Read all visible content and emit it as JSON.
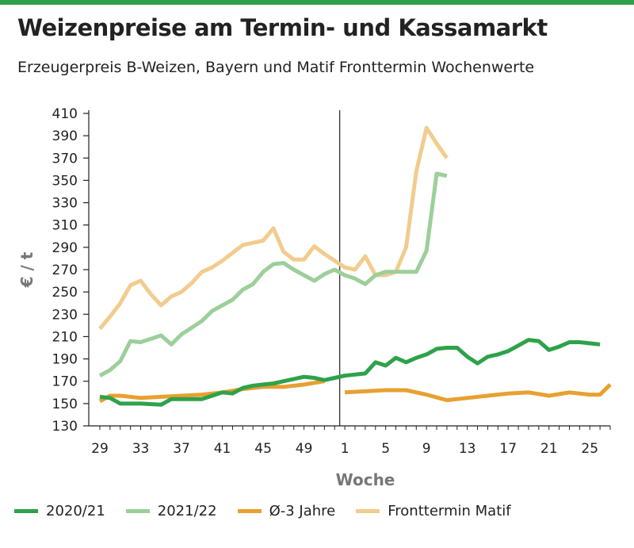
{
  "title": "Weizenpreise am Termin- und Kassamarkt",
  "subtitle": "Erzeugerpreis B-Weizen, Bayern und Matif Fronttermin Wochenwerte",
  "chart_data": {
    "type": "line",
    "title": "Weizenpreise am Termin- und Kassamarkt",
    "subtitle": "Erzeugerpreis B-Weizen, Bayern und Matif Fronttermin Wochenwerte",
    "xlabel": "Woche",
    "ylabel": "€ / t",
    "ylim": [
      130,
      410
    ],
    "yticks": [
      130,
      150,
      170,
      190,
      210,
      230,
      250,
      270,
      290,
      310,
      330,
      350,
      370,
      390,
      410
    ],
    "x_positions": [
      "29",
      "30",
      "31",
      "32",
      "33",
      "34",
      "35",
      "36",
      "37",
      "38",
      "39",
      "40",
      "41",
      "42",
      "43",
      "44",
      "45",
      "46",
      "47",
      "48",
      "49",
      "50",
      "51",
      "52",
      "1",
      "2",
      "3",
      "4",
      "5",
      "6",
      "7",
      "8",
      "9",
      "10",
      "11",
      "12",
      "13",
      "14",
      "15",
      "16",
      "17",
      "18",
      "19",
      "20",
      "21",
      "22",
      "23",
      "24",
      "25",
      "26",
      "27"
    ],
    "xtick_labels": [
      "29",
      "33",
      "37",
      "41",
      "45",
      "49",
      "1",
      "5",
      "9",
      "13",
      "17",
      "21",
      "25"
    ],
    "divider_at": "1",
    "grid": false,
    "legend_position": "bottom",
    "series": [
      {
        "name": "2020/21",
        "color": "#2ea24a",
        "points": [
          [
            "29",
            156
          ],
          [
            "30",
            155
          ],
          [
            "31",
            150
          ],
          [
            "33",
            150
          ],
          [
            "35",
            149
          ],
          [
            "36",
            154
          ],
          [
            "37",
            154
          ],
          [
            "39",
            154
          ],
          [
            "41",
            160
          ],
          [
            "42",
            159
          ],
          [
            "43",
            164
          ],
          [
            "44",
            166
          ],
          [
            "45",
            167
          ],
          [
            "46",
            168
          ],
          [
            "47",
            170
          ],
          [
            "48",
            172
          ],
          [
            "49",
            174
          ],
          [
            "50",
            173
          ],
          [
            "51",
            171
          ],
          [
            "52",
            173
          ],
          [
            "1",
            175
          ],
          [
            "2",
            176
          ],
          [
            "3",
            177
          ],
          [
            "4",
            187
          ],
          [
            "5",
            184
          ],
          [
            "6",
            191
          ],
          [
            "7",
            187
          ],
          [
            "8",
            191
          ],
          [
            "9",
            194
          ],
          [
            "10",
            199
          ],
          [
            "11",
            200
          ],
          [
            "12",
            200
          ],
          [
            "13",
            192
          ],
          [
            "14",
            186
          ],
          [
            "15",
            192
          ],
          [
            "16",
            194
          ],
          [
            "17",
            197
          ],
          [
            "18",
            202
          ],
          [
            "19",
            207
          ],
          [
            "20",
            206
          ],
          [
            "21",
            198
          ],
          [
            "22",
            201
          ],
          [
            "23",
            205
          ],
          [
            "24",
            205
          ],
          [
            "25",
            204
          ],
          [
            "26",
            203
          ]
        ]
      },
      {
        "name": "2021/22",
        "color": "#9ccf9a",
        "points": [
          [
            "29",
            175
          ],
          [
            "30",
            180
          ],
          [
            "31",
            188
          ],
          [
            "32",
            206
          ],
          [
            "33",
            205
          ],
          [
            "34",
            208
          ],
          [
            "35",
            211
          ],
          [
            "36",
            203
          ],
          [
            "37",
            212
          ],
          [
            "38",
            218
          ],
          [
            "39",
            224
          ],
          [
            "40",
            233
          ],
          [
            "41",
            238
          ],
          [
            "42",
            243
          ],
          [
            "43",
            252
          ],
          [
            "44",
            257
          ],
          [
            "45",
            268
          ],
          [
            "46",
            275
          ],
          [
            "47",
            276
          ],
          [
            "48",
            270
          ],
          [
            "49",
            265
          ],
          [
            "50",
            260
          ],
          [
            "51",
            266
          ],
          [
            "52",
            270
          ],
          [
            "1",
            265
          ],
          [
            "2",
            262
          ],
          [
            "3",
            257
          ],
          [
            "4",
            265
          ],
          [
            "5",
            268
          ],
          [
            "6",
            268
          ],
          [
            "7",
            268
          ],
          [
            "8",
            268
          ],
          [
            "9",
            287
          ],
          [
            "10",
            356
          ],
          [
            "11",
            354
          ]
        ]
      },
      {
        "name": "Ø-3 Jahre",
        "color": "#e8a030",
        "segments": [
          [
            [
              "29",
              152
            ],
            [
              "30",
              157
            ],
            [
              "31",
              157
            ],
            [
              "33",
              155
            ],
            [
              "35",
              156
            ],
            [
              "37",
              157
            ],
            [
              "39",
              158
            ],
            [
              "41",
              160
            ],
            [
              "43",
              163
            ],
            [
              "45",
              165
            ],
            [
              "47",
              165
            ],
            [
              "49",
              167
            ],
            [
              "51",
              170
            ]
          ],
          [
            [
              "1",
              160
            ],
            [
              "3",
              161
            ],
            [
              "5",
              162
            ],
            [
              "7",
              162
            ],
            [
              "9",
              158
            ],
            [
              "11",
              153
            ],
            [
              "13",
              155
            ],
            [
              "15",
              157
            ],
            [
              "17",
              159
            ],
            [
              "19",
              160
            ],
            [
              "21",
              157
            ],
            [
              "23",
              160
            ],
            [
              "25",
              158
            ],
            [
              "26",
              158
            ],
            [
              "27",
              167
            ]
          ]
        ]
      },
      {
        "name": "Fronttermin Matif",
        "color": "#f2cc8e",
        "points": [
          [
            "29",
            217
          ],
          [
            "30",
            228
          ],
          [
            "31",
            240
          ],
          [
            "32",
            256
          ],
          [
            "33",
            260
          ],
          [
            "34",
            248
          ],
          [
            "35",
            238
          ],
          [
            "36",
            246
          ],
          [
            "37",
            250
          ],
          [
            "38",
            258
          ],
          [
            "39",
            268
          ],
          [
            "40",
            272
          ],
          [
            "41",
            278
          ],
          [
            "42",
            285
          ],
          [
            "43",
            292
          ],
          [
            "44",
            294
          ],
          [
            "45",
            296
          ],
          [
            "46",
            307
          ],
          [
            "47",
            286
          ],
          [
            "48",
            279
          ],
          [
            "49",
            279
          ],
          [
            "50",
            291
          ],
          [
            "51",
            284
          ],
          [
            "52",
            278
          ],
          [
            "1",
            272
          ],
          [
            "2",
            270
          ],
          [
            "3",
            282
          ],
          [
            "4",
            265
          ],
          [
            "5",
            265
          ],
          [
            "6",
            268
          ],
          [
            "7",
            290
          ],
          [
            "8",
            358
          ],
          [
            "9",
            397
          ],
          [
            "10",
            383
          ],
          [
            "11",
            370
          ]
        ]
      }
    ]
  }
}
